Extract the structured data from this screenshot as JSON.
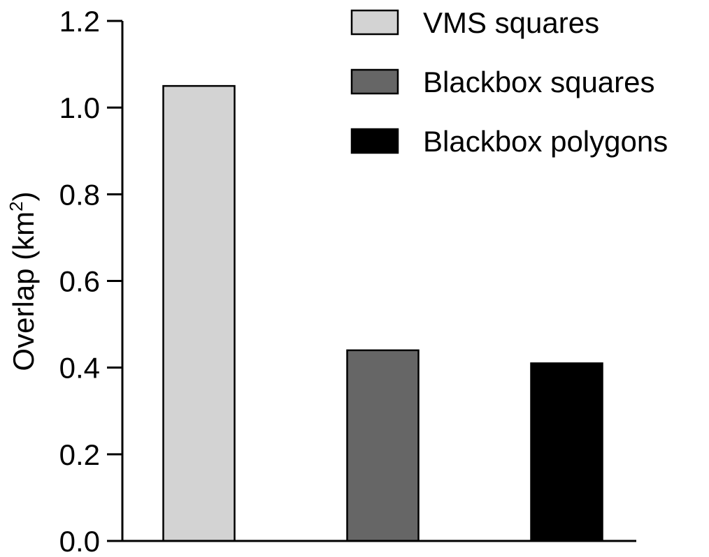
{
  "chart_data": {
    "type": "bar",
    "title": "",
    "xlabel": "",
    "ylabel": "Overlap (km2)",
    "ylabel_parts": {
      "main": "Overlap (km",
      "superscript": "2",
      "close": ")"
    },
    "ylim": [
      0,
      1.2
    ],
    "yticks": [
      0.0,
      0.2,
      0.4,
      0.6,
      0.8,
      1.0,
      1.2
    ],
    "ytick_labels": [
      "0.0",
      "0.2",
      "0.4",
      "0.6",
      "0.8",
      "1.0",
      "1.2"
    ],
    "grid": false,
    "legend_position": "top-right",
    "categories": [
      "VMS squares",
      "Blackbox squares",
      "Blackbox polygons"
    ],
    "values": [
      1.05,
      0.44,
      0.41
    ],
    "colors": [
      "#d3d3d3",
      "#666666",
      "#000000"
    ],
    "edge_color": "#000000"
  }
}
